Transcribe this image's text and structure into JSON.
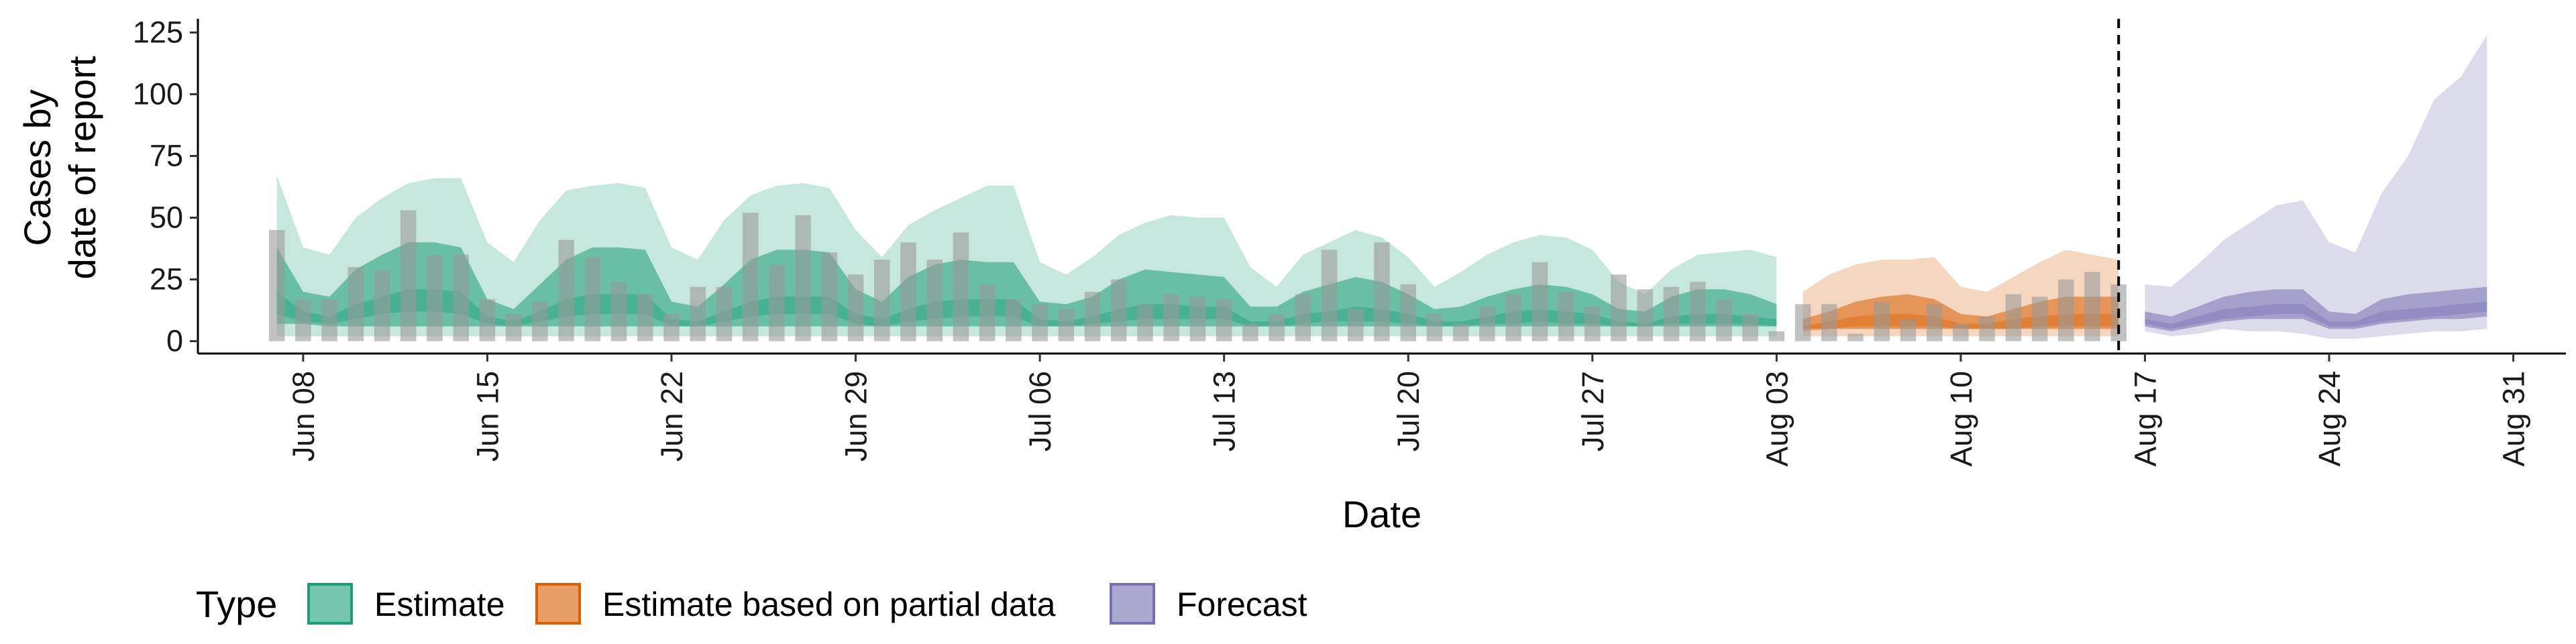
{
  "chart_data": {
    "type": "area",
    "xlabel": "Date",
    "ylabel": [
      "Cases by",
      "date of report"
    ],
    "ylim": [
      -5,
      130
    ],
    "yticks": [
      0,
      25,
      50,
      75,
      100,
      125
    ],
    "xlim": [
      "2020-06-04",
      "2020-09-02"
    ],
    "xticks": [
      "2020-06-08",
      "2020-06-15",
      "2020-06-22",
      "2020-06-29",
      "2020-07-06",
      "2020-07-13",
      "2020-07-20",
      "2020-07-27",
      "2020-08-03",
      "2020-08-10",
      "2020-08-17",
      "2020-08-24",
      "2020-08-31"
    ],
    "xtick_labels": [
      "Jun 08",
      "Jun 15",
      "Jun 22",
      "Jun 29",
      "Jul 06",
      "Jul 13",
      "Jul 20",
      "Jul 27",
      "Aug 03",
      "Aug 10",
      "Aug 17",
      "Aug 24",
      "Aug 31"
    ],
    "reference_line": "2020-08-16",
    "legend": {
      "title": "Type",
      "position": "bottom",
      "items": [
        {
          "label": "Estimate",
          "color": "#1b9e77"
        },
        {
          "label": "Estimate based on partial data",
          "color": "#d95f02"
        },
        {
          "label": "Forecast",
          "color": "#7570b3"
        }
      ]
    },
    "bars": {
      "color": "#999999",
      "dates": [
        "2020-06-07",
        "2020-06-08",
        "2020-06-09",
        "2020-06-10",
        "2020-06-11",
        "2020-06-12",
        "2020-06-13",
        "2020-06-14",
        "2020-06-15",
        "2020-06-16",
        "2020-06-17",
        "2020-06-18",
        "2020-06-19",
        "2020-06-20",
        "2020-06-21",
        "2020-06-22",
        "2020-06-23",
        "2020-06-24",
        "2020-06-25",
        "2020-06-26",
        "2020-06-27",
        "2020-06-28",
        "2020-06-29",
        "2020-06-30",
        "2020-07-01",
        "2020-07-02",
        "2020-07-03",
        "2020-07-04",
        "2020-07-05",
        "2020-07-06",
        "2020-07-07",
        "2020-07-08",
        "2020-07-09",
        "2020-07-10",
        "2020-07-11",
        "2020-07-12",
        "2020-07-13",
        "2020-07-14",
        "2020-07-15",
        "2020-07-16",
        "2020-07-17",
        "2020-07-18",
        "2020-07-19",
        "2020-07-20",
        "2020-07-21",
        "2020-07-22",
        "2020-07-23",
        "2020-07-24",
        "2020-07-25",
        "2020-07-26",
        "2020-07-27",
        "2020-07-28",
        "2020-07-29",
        "2020-07-30",
        "2020-07-31",
        "2020-08-01",
        "2020-08-02",
        "2020-08-03",
        "2020-08-04",
        "2020-08-05",
        "2020-08-06",
        "2020-08-07",
        "2020-08-08",
        "2020-08-09",
        "2020-08-10",
        "2020-08-11",
        "2020-08-12",
        "2020-08-13",
        "2020-08-14",
        "2020-08-15",
        "2020-08-16"
      ],
      "values": [
        45,
        17,
        17,
        30,
        29,
        53,
        35,
        35,
        17,
        11,
        16,
        41,
        34,
        24,
        19,
        11,
        22,
        22,
        52,
        31,
        51,
        36,
        27,
        33,
        40,
        33,
        44,
        23,
        17,
        15,
        13,
        20,
        25,
        15,
        19,
        18,
        17,
        7,
        11,
        19,
        37,
        13,
        40,
        23,
        11,
        7,
        14,
        19,
        32,
        20,
        14,
        27,
        21,
        22,
        24,
        17,
        11,
        4,
        15,
        15,
        3,
        16,
        9,
        15,
        7,
        10,
        19,
        18,
        25,
        28,
        23
      ]
    },
    "series": [
      {
        "name": "Estimate",
        "color": "#1b9e77",
        "dates": [
          "2020-06-07",
          "2020-06-08",
          "2020-06-09",
          "2020-06-10",
          "2020-06-11",
          "2020-06-12",
          "2020-06-13",
          "2020-06-14",
          "2020-06-15",
          "2020-06-16",
          "2020-06-17",
          "2020-06-18",
          "2020-06-19",
          "2020-06-20",
          "2020-06-21",
          "2020-06-22",
          "2020-06-23",
          "2020-06-24",
          "2020-06-25",
          "2020-06-26",
          "2020-06-27",
          "2020-06-28",
          "2020-06-29",
          "2020-06-30",
          "2020-07-01",
          "2020-07-02",
          "2020-07-03",
          "2020-07-04",
          "2020-07-05",
          "2020-07-06",
          "2020-07-07",
          "2020-07-08",
          "2020-07-09",
          "2020-07-10",
          "2020-07-11",
          "2020-07-12",
          "2020-07-13",
          "2020-07-14",
          "2020-07-15",
          "2020-07-16",
          "2020-07-17",
          "2020-07-18",
          "2020-07-19",
          "2020-07-20",
          "2020-07-21",
          "2020-07-22",
          "2020-07-23",
          "2020-07-24",
          "2020-07-25",
          "2020-07-26",
          "2020-07-27",
          "2020-07-28",
          "2020-07-29",
          "2020-07-30",
          "2020-07-31",
          "2020-08-01",
          "2020-08-02",
          "2020-08-03"
        ],
        "upper90": [
          67,
          38,
          35,
          50,
          58,
          64,
          66,
          66,
          40,
          32,
          49,
          61,
          63,
          64,
          62,
          38,
          33,
          49,
          59,
          63,
          64,
          62,
          45,
          34,
          47,
          53,
          58,
          63,
          63,
          32,
          27,
          34,
          43,
          48,
          51,
          50,
          50,
          30,
          22,
          35,
          40,
          45,
          42,
          34,
          22,
          28,
          35,
          40,
          43,
          42,
          37,
          24,
          19,
          29,
          35,
          36,
          37,
          34
        ],
        "lower90": [
          2,
          2,
          2,
          2,
          2,
          2,
          2,
          2,
          2,
          2,
          2,
          2,
          2,
          2,
          2,
          2,
          2,
          2,
          2,
          2,
          2,
          2,
          2,
          2,
          2,
          2,
          2,
          2,
          2,
          2,
          2,
          2,
          2,
          2,
          2,
          2,
          2,
          2,
          2,
          2,
          2,
          2,
          2,
          2,
          2,
          2,
          2,
          2,
          2,
          2,
          2,
          2,
          2,
          2,
          2,
          2,
          2,
          2
        ],
        "upper50": [
          38,
          20,
          18,
          29,
          35,
          40,
          40,
          38,
          17,
          13,
          23,
          33,
          38,
          38,
          37,
          16,
          14,
          23,
          33,
          37,
          37,
          36,
          21,
          16,
          26,
          31,
          33,
          32,
          32,
          16,
          15,
          18,
          25,
          29,
          28,
          27,
          26,
          14,
          14,
          20,
          23,
          26,
          24,
          19,
          13,
          14,
          18,
          21,
          23,
          22,
          19,
          13,
          12,
          18,
          21,
          21,
          19,
          15
        ],
        "lower50": [
          7,
          7,
          6,
          6,
          6,
          6,
          6,
          6,
          6,
          6,
          6,
          6,
          6,
          6,
          6,
          6,
          6,
          6,
          6,
          6,
          6,
          6,
          6,
          6,
          6,
          6,
          6,
          6,
          6,
          6,
          6,
          6,
          6,
          6,
          6,
          6,
          6,
          6,
          6,
          6,
          6,
          6,
          6,
          6,
          6,
          6,
          6,
          6,
          6,
          6,
          6,
          6,
          6,
          6,
          6,
          6,
          6,
          6
        ],
        "upper20": [
          20,
          12,
          10,
          15,
          18,
          21,
          21,
          20,
          10,
          8,
          12,
          17,
          19,
          19,
          19,
          9,
          8,
          12,
          16,
          18,
          18,
          18,
          11,
          9,
          13,
          16,
          17,
          17,
          17,
          9,
          8,
          10,
          13,
          15,
          15,
          14,
          14,
          8,
          8,
          11,
          12,
          14,
          13,
          11,
          8,
          8,
          10,
          12,
          13,
          12,
          11,
          8,
          7,
          10,
          11,
          11,
          10,
          9
        ],
        "lower20": [
          11,
          8,
          7,
          9,
          11,
          12,
          12,
          11,
          7,
          6,
          8,
          10,
          11,
          11,
          11,
          6,
          6,
          8,
          10,
          11,
          11,
          11,
          7,
          6,
          8,
          9,
          10,
          10,
          10,
          6,
          6,
          7,
          8,
          9,
          9,
          9,
          9,
          6,
          6,
          7,
          8,
          8,
          8,
          7,
          6,
          6,
          7,
          7,
          8,
          7,
          7,
          6,
          6,
          7,
          7,
          7,
          7,
          6
        ]
      },
      {
        "name": "Estimate based on partial data",
        "color": "#d95f02",
        "dates": [
          "2020-08-04",
          "2020-08-05",
          "2020-08-06",
          "2020-08-07",
          "2020-08-08",
          "2020-08-09",
          "2020-08-10",
          "2020-08-11",
          "2020-08-12",
          "2020-08-13",
          "2020-08-14",
          "2020-08-15",
          "2020-08-16"
        ],
        "upper90": [
          20,
          27,
          31,
          33,
          33,
          34,
          22,
          20,
          26,
          32,
          37,
          35,
          33
        ],
        "lower90": [
          2,
          2,
          2,
          2,
          2,
          2,
          2,
          2,
          2,
          2,
          2,
          2,
          2
        ],
        "upper50": [
          9,
          12,
          16,
          18,
          19,
          17,
          11,
          10,
          13,
          16,
          18,
          18,
          18
        ],
        "lower50": [
          5,
          5,
          5,
          5,
          5,
          5,
          5,
          5,
          5,
          5,
          5,
          5,
          5
        ],
        "upper20": [
          6,
          8,
          10,
          11,
          11,
          10,
          7,
          7,
          9,
          10,
          11,
          11,
          11
        ],
        "lower20": [
          4,
          5,
          6,
          6,
          6,
          6,
          5,
          5,
          5,
          6,
          6,
          6,
          6
        ]
      },
      {
        "name": "Forecast",
        "color": "#7570b3",
        "dates": [
          "2020-08-17",
          "2020-08-18",
          "2020-08-19",
          "2020-08-20",
          "2020-08-21",
          "2020-08-22",
          "2020-08-23",
          "2020-08-24",
          "2020-08-25",
          "2020-08-26",
          "2020-08-27",
          "2020-08-28",
          "2020-08-29",
          "2020-08-30"
        ],
        "upper90": [
          23,
          22,
          31,
          41,
          48,
          55,
          57,
          40,
          36,
          60,
          75,
          98,
          107,
          124
        ],
        "lower90": [
          4,
          2,
          3,
          5,
          4,
          4,
          3,
          1,
          1,
          2,
          3,
          4,
          4,
          5
        ],
        "upper50": [
          12,
          10,
          14,
          18,
          20,
          21,
          21,
          12,
          11,
          17,
          19,
          20,
          21,
          22
        ],
        "lower50": [
          6,
          4,
          6,
          8,
          9,
          9,
          9,
          5,
          5,
          7,
          8,
          9,
          9,
          10
        ],
        "upper20": [
          9,
          7,
          10,
          13,
          14,
          15,
          15,
          8,
          8,
          12,
          13,
          14,
          15,
          16
        ],
        "lower20": [
          7,
          5,
          7,
          9,
          10,
          11,
          11,
          6,
          6,
          8,
          9,
          10,
          11,
          12
        ]
      }
    ]
  }
}
